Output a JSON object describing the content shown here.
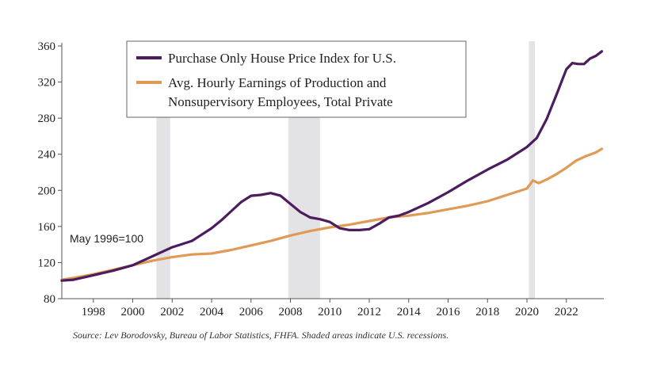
{
  "chart_data": {
    "type": "line",
    "title": "",
    "xlabel": "",
    "ylabel": "",
    "xlim": [
      1996.4,
      2023.9
    ],
    "ylim": [
      80,
      360
    ],
    "yticks": [
      80,
      120,
      160,
      200,
      240,
      280,
      320,
      360
    ],
    "xticks": [
      1998,
      2000,
      2002,
      2004,
      2006,
      2008,
      2010,
      2012,
      2014,
      2016,
      2018,
      2020,
      2022
    ],
    "grid": false,
    "legend_position": "top-center",
    "annotation": "May 1996=100",
    "source_note": "Source:  Lev Borodovsky, Bureau of Labor Statistics, FHFA. Shaded areas indicate U.S. recessions.",
    "recessions": [
      [
        2001.2,
        2001.9
      ],
      [
        2007.9,
        2009.5
      ],
      [
        2020.1,
        2020.4
      ]
    ],
    "colors": {
      "recession": "#e3e3e6",
      "axis": "#555555"
    },
    "series": [
      {
        "name": "Purchase Only House Price Index for U.S.",
        "color": "#4b1c5e",
        "x": [
          1996.4,
          1997,
          1998,
          1999,
          2000,
          2001,
          2002,
          2003,
          2004,
          2004.5,
          2005,
          2005.5,
          2006,
          2006.5,
          2007,
          2007.5,
          2008,
          2008.5,
          2009,
          2009.5,
          2010,
          2010.5,
          2011,
          2011.5,
          2012,
          2012.5,
          2013,
          2013.5,
          2014,
          2015,
          2016,
          2017,
          2018,
          2019,
          2020,
          2020.5,
          2021,
          2021.5,
          2022,
          2022.3,
          2022.6,
          2022.9,
          2023.2,
          2023.5,
          2023.8
        ],
        "y": [
          100,
          101,
          106,
          111,
          117,
          127,
          137,
          144,
          158,
          167,
          177,
          187,
          194,
          195,
          197,
          194,
          185,
          176,
          170,
          168,
          165,
          158,
          156,
          156,
          157,
          163,
          170,
          172,
          176,
          186,
          198,
          211,
          223,
          234,
          248,
          258,
          279,
          306,
          334,
          341,
          340,
          340,
          346,
          349,
          354
        ]
      },
      {
        "name": "Avg. Hourly Earnings of Production and Nonsupervisory Employees, Total Private",
        "color": "#e09a55",
        "x": [
          1996.4,
          1997,
          1998,
          1999,
          2000,
          2001,
          2002,
          2003,
          2004,
          2005,
          2006,
          2007,
          2008,
          2009,
          2010,
          2011,
          2012,
          2013,
          2014,
          2015,
          2016,
          2017,
          2018,
          2019,
          2020,
          2020.3,
          2020.6,
          2021,
          2021.5,
          2022,
          2022.5,
          2023,
          2023.5,
          2023.8
        ],
        "y": [
          101,
          103,
          107,
          112,
          117,
          122,
          126,
          129,
          130,
          134,
          139,
          144,
          150,
          155,
          159,
          162,
          166,
          170,
          172,
          175,
          179,
          183,
          188,
          195,
          202,
          211,
          208,
          212,
          218,
          225,
          233,
          238,
          242,
          246
        ]
      }
    ]
  }
}
